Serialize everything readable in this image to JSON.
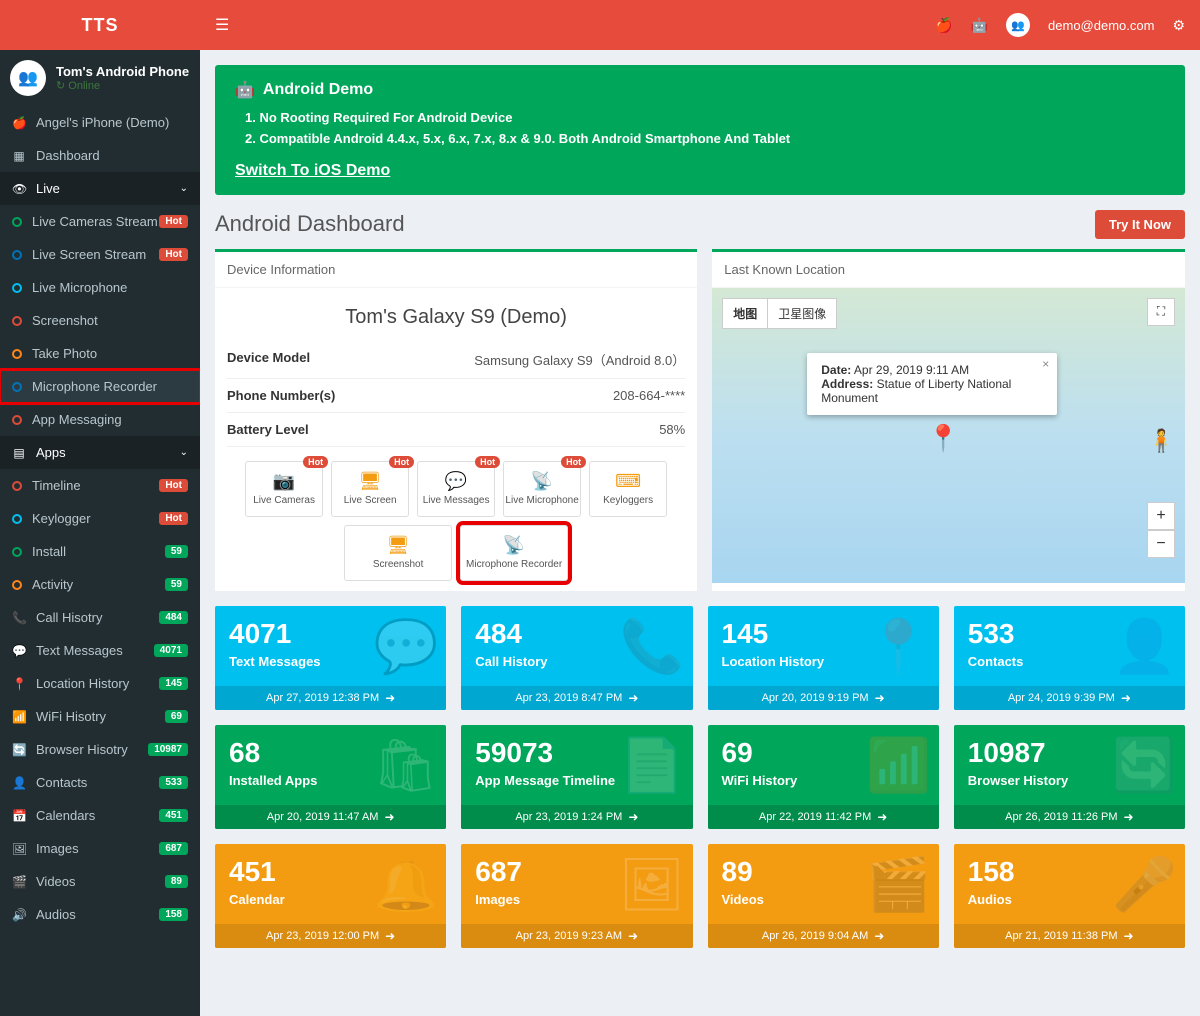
{
  "brand": "TTS",
  "user": {
    "name": "Tom's Android Phone",
    "status": "Online"
  },
  "topbar": {
    "email": "demo@demo.com"
  },
  "sidebar": {
    "demoItem": "Angel's iPhone (Demo)",
    "dashboard": "Dashboard",
    "live": {
      "label": "Live",
      "items": [
        {
          "label": "Live Cameras Stream",
          "color": "c-green",
          "badge": "Hot",
          "badgeColor": "badge-red"
        },
        {
          "label": "Live Screen Stream",
          "color": "c-blue",
          "badge": "Hot",
          "badgeColor": "badge-red"
        },
        {
          "label": "Live Microphone",
          "color": "c-aqua",
          "badge": "",
          "badgeColor": ""
        },
        {
          "label": "Screenshot",
          "color": "c-red",
          "badge": "",
          "badgeColor": ""
        },
        {
          "label": "Take Photo",
          "color": "c-orange",
          "badge": "",
          "badgeColor": ""
        },
        {
          "label": "Microphone Recorder",
          "color": "c-blue",
          "badge": "",
          "badgeColor": "",
          "highlight": true
        },
        {
          "label": "App Messaging",
          "color": "c-red",
          "badge": "",
          "badgeColor": ""
        }
      ]
    },
    "apps": {
      "label": "Apps",
      "items": [
        {
          "label": "Timeline",
          "color": "c-red",
          "badge": "Hot",
          "badgeColor": "badge-red"
        },
        {
          "label": "Keylogger",
          "color": "c-aqua",
          "badge": "Hot",
          "badgeColor": "badge-red"
        },
        {
          "label": "Install",
          "color": "c-green",
          "badge": "59",
          "badgeColor": "badge-green"
        },
        {
          "label": "Activity",
          "color": "c-orange",
          "badge": "59",
          "badgeColor": "badge-green"
        }
      ]
    },
    "main": [
      {
        "label": "Call Hisotry",
        "icon": "📞",
        "badge": "484"
      },
      {
        "label": "Text Messages",
        "icon": "💬",
        "badge": "4071"
      },
      {
        "label": "Location History",
        "icon": "📍",
        "badge": "145"
      },
      {
        "label": "WiFi Hisotry",
        "icon": "📶",
        "badge": "69"
      },
      {
        "label": "Browser Hisotry",
        "icon": "🔄",
        "badge": "10987"
      },
      {
        "label": "Contacts",
        "icon": "👤",
        "badge": "533"
      },
      {
        "label": "Calendars",
        "icon": "📅",
        "badge": "451"
      },
      {
        "label": "Images",
        "icon": "🖼",
        "badge": "687"
      },
      {
        "label": "Videos",
        "icon": "🎬",
        "badge": "89"
      },
      {
        "label": "Audios",
        "icon": "🔊",
        "badge": "158"
      }
    ]
  },
  "banner": {
    "title": "Android Demo",
    "line1": "1. No Rooting Required For Android Device",
    "line2": "2. Compatible Android 4.4.x, 5.x, 6.x, 7.x, 8.x & 9.0. Both Android Smartphone And Tablet",
    "link": "Switch To iOS Demo"
  },
  "page": {
    "title": "Android Dashboard",
    "tryBtn": "Try It Now"
  },
  "deviceInfo": {
    "header": "Device Information",
    "title": "Tom's Galaxy S9 (Demo)",
    "modelLabel": "Device Model",
    "modelValue": "Samsung Galaxy S9（Android 8.0）",
    "phoneLabel": "Phone Number(s)",
    "phoneValue": "208-664-****",
    "batteryLabel": "Battery Level",
    "batteryValue": "58%",
    "tiles": [
      {
        "label": "Live Cameras",
        "icon": "📷",
        "hot": "Hot"
      },
      {
        "label": "Live Screen",
        "icon": "🖥",
        "hot": "Hot"
      },
      {
        "label": "Live Messages",
        "icon": "💬",
        "hot": "Hot"
      },
      {
        "label": "Live Microphone",
        "icon": "📡",
        "hot": "Hot"
      },
      {
        "label": "Keyloggers",
        "icon": "⌨",
        "hot": ""
      }
    ],
    "tiles2": [
      {
        "label": "Screenshot",
        "icon": "🖥",
        "hot": ""
      },
      {
        "label": "Microphone Recorder",
        "icon": "📡",
        "hot": "",
        "highlight": true
      }
    ]
  },
  "location": {
    "header": "Last Known Location",
    "mapTab1": "地图",
    "mapTab2": "卫星图像",
    "dateLabel": "Date:",
    "dateValue": "Apr 29, 2019 9:11 AM",
    "addrLabel": "Address:",
    "addrValue": "Statue of Liberty National Monument"
  },
  "stats": [
    {
      "num": "4071",
      "label": "Text Messages",
      "date": "Apr 27, 2019 12:38 PM",
      "color": "bg-aqua",
      "icon": "💬"
    },
    {
      "num": "484",
      "label": "Call History",
      "date": "Apr 23, 2019 8:47 PM",
      "color": "bg-aqua",
      "icon": "📞"
    },
    {
      "num": "145",
      "label": "Location History",
      "date": "Apr 20, 2019 9:19 PM",
      "color": "bg-aqua",
      "icon": "📍"
    },
    {
      "num": "533",
      "label": "Contacts",
      "date": "Apr 24, 2019 9:39 PM",
      "color": "bg-aqua",
      "icon": "👤"
    },
    {
      "num": "68",
      "label": "Installed Apps",
      "date": "Apr 20, 2019 11:47 AM",
      "color": "bg-green2",
      "icon": "🛍"
    },
    {
      "num": "59073",
      "label": "App Message Timeline",
      "date": "Apr 23, 2019 1:24 PM",
      "color": "bg-green2",
      "icon": "📄"
    },
    {
      "num": "69",
      "label": "WiFi History",
      "date": "Apr 22, 2019 11:42 PM",
      "color": "bg-green2",
      "icon": "📶"
    },
    {
      "num": "10987",
      "label": "Browser History",
      "date": "Apr 26, 2019 11:26 PM",
      "color": "bg-green2",
      "icon": "🔄"
    },
    {
      "num": "451",
      "label": "Calendar",
      "date": "Apr 23, 2019 12:00 PM",
      "color": "bg-orange2",
      "icon": "🔔"
    },
    {
      "num": "687",
      "label": "Images",
      "date": "Apr 23, 2019 9:23 AM",
      "color": "bg-orange2",
      "icon": "🖼"
    },
    {
      "num": "89",
      "label": "Videos",
      "date": "Apr 26, 2019 9:04 AM",
      "color": "bg-orange2",
      "icon": "🎬"
    },
    {
      "num": "158",
      "label": "Audios",
      "date": "Apr 21, 2019 11:38 PM",
      "color": "bg-orange2",
      "icon": "🎤"
    }
  ]
}
